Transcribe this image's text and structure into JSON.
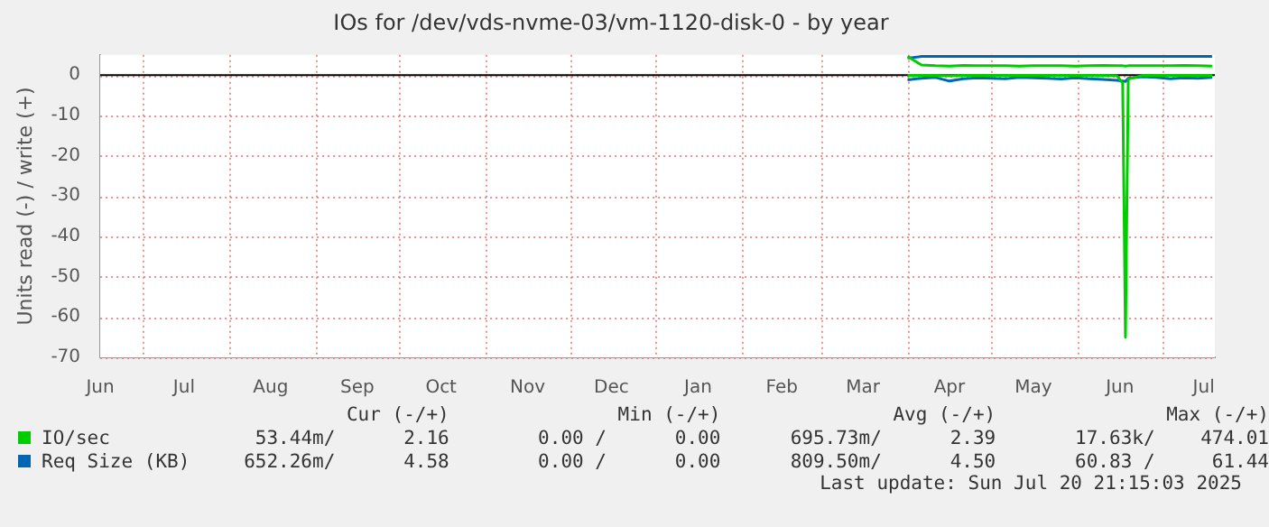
{
  "chart_data": {
    "type": "line",
    "title": "IOs for /dev/vds-nvme-03/vm-1120-disk-0 - by year",
    "ylabel": "Units read (-) / write (+)",
    "x": [
      "2025-04-01",
      "2025-04-06",
      "2025-04-11",
      "2025-04-16",
      "2025-04-21",
      "2025-04-26",
      "2025-05-01",
      "2025-05-06",
      "2025-05-11",
      "2025-05-16",
      "2025-05-21",
      "2025-05-26",
      "2025-05-31",
      "2025-06-05",
      "2025-06-10",
      "2025-06-15",
      "2025-06-17",
      "2025-06-18",
      "2025-06-19",
      "2025-06-24",
      "2025-06-29",
      "2025-07-04",
      "2025-07-09",
      "2025-07-14",
      "2025-07-19"
    ],
    "series": [
      {
        "name": "IO/sec",
        "color": "#00cc00",
        "values": [
          4.6,
          2.5,
          2.3,
          2.2,
          2.4,
          2.3,
          2.3,
          2.3,
          2.2,
          2.3,
          2.3,
          2.3,
          2.2,
          2.3,
          2.4,
          2.3,
          2.3,
          2.2,
          2.3,
          2.3,
          2.3,
          2.3,
          2.4,
          2.3,
          2.2
        ]
      },
      {
        "color": "#00cc00",
        "values": [
          -0.1,
          -0.1,
          -0.1,
          -0.2,
          -0.1,
          -0.1,
          -0.1,
          -0.1,
          -0.1,
          -0.1,
          -0.1,
          -0.1,
          -0.1,
          -0.1,
          -0.1,
          -0.2,
          -2,
          -65,
          -1,
          -0.1,
          -0.1,
          -0.1,
          -0.1,
          -0.1,
          -0.1
        ]
      },
      {
        "name": "Req Size (KB)",
        "color": "#0066b3",
        "values": [
          4.2,
          4.6,
          4.6,
          4.6,
          4.6,
          4.6,
          4.6,
          4.6,
          4.6,
          4.6,
          4.6,
          4.6,
          4.6,
          4.6,
          4.6,
          4.6,
          4.6,
          4.6,
          4.6,
          4.6,
          4.6,
          4.6,
          4.6,
          4.6,
          4.6
        ]
      },
      {
        "color": "#0066b3",
        "values": [
          -1.2,
          -0.8,
          -0.6,
          -1.5,
          -0.9,
          -0.7,
          -0.8,
          -0.9,
          -0.6,
          -0.7,
          -0.8,
          -1.0,
          -0.7,
          -0.9,
          -1.1,
          -1.3,
          -1.5,
          -1.6,
          -0.8,
          -0.4,
          -0.6,
          -0.9,
          -0.7,
          -0.8,
          -0.6
        ]
      }
    ],
    "xlim": [
      "2024-06-16",
      "2025-07-20"
    ],
    "xticks": [
      {
        "value": "2024-06-16",
        "label": "Jun"
      },
      {
        "value": "2024-07-01",
        "label": null
      },
      {
        "value": "2024-07-16",
        "label": "Jul"
      },
      {
        "value": "2024-08-01",
        "label": null
      },
      {
        "value": "2024-08-16",
        "label": "Aug"
      },
      {
        "value": "2024-09-01",
        "label": null
      },
      {
        "value": "2024-09-16",
        "label": "Sep"
      },
      {
        "value": "2024-10-01",
        "label": null
      },
      {
        "value": "2024-10-16",
        "label": "Oct"
      },
      {
        "value": "2024-11-01",
        "label": null
      },
      {
        "value": "2024-11-16",
        "label": "Nov"
      },
      {
        "value": "2024-12-01",
        "label": null
      },
      {
        "value": "2024-12-16",
        "label": "Dec"
      },
      {
        "value": "2025-01-01",
        "label": null
      },
      {
        "value": "2025-01-16",
        "label": "Jan"
      },
      {
        "value": "2025-02-01",
        "label": null
      },
      {
        "value": "2025-02-15",
        "label": "Feb"
      },
      {
        "value": "2025-03-01",
        "label": null
      },
      {
        "value": "2025-03-16",
        "label": "Mar"
      },
      {
        "value": "2025-04-01",
        "label": null
      },
      {
        "value": "2025-04-16",
        "label": "Apr"
      },
      {
        "value": "2025-05-01",
        "label": null
      },
      {
        "value": "2025-05-16",
        "label": "May"
      },
      {
        "value": "2025-06-01",
        "label": null
      },
      {
        "value": "2025-06-16",
        "label": "Jun"
      },
      {
        "value": "2025-07-01",
        "label": null
      },
      {
        "value": "2025-07-16",
        "label": "Jul"
      }
    ],
    "ylim": [
      -70,
      5
    ],
    "yticks": [
      0,
      -10,
      -20,
      -30,
      -40,
      -50,
      -60,
      -70
    ],
    "ref_lines": [
      {
        "axis": "y",
        "value": 0,
        "color": "#000000"
      }
    ],
    "grid": true,
    "legend": "bottom left",
    "marker": "none",
    "line_style": "solid",
    "annotations": [
      "Cur (-/+)",
      "Min (-/+)",
      "Avg (-/+)",
      "Max (-/+)",
      "53.44m/      2.16",
      "0.00 /      0.00",
      "695.73m/      2.39",
      "17.63k/    474.01",
      "652.26m/      4.58",
      "0.00 /      0.00",
      "809.50m/      4.50",
      "60.83 /     61.44",
      "Last update: Sun Jul 20 21:15:03 2025"
    ]
  }
}
